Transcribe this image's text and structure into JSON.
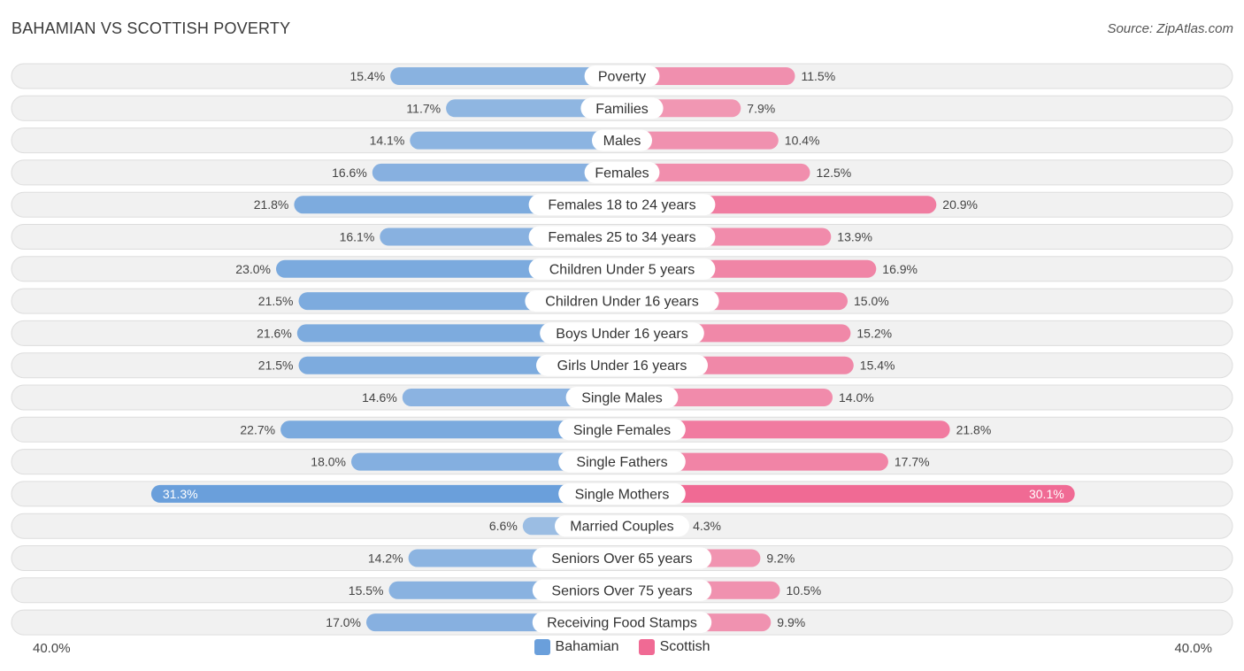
{
  "header": {
    "title": "BAHAMIAN VS SCOTTISH POVERTY",
    "source": "Source: ZipAtlas.com"
  },
  "chart_data": {
    "type": "bar",
    "orientation": "horizontal-diverging",
    "title": "BAHAMIAN VS SCOTTISH POVERTY",
    "axis_max": 40.0,
    "axis_left_label": "40.0%",
    "axis_right_label": "40.0%",
    "categories": [
      "Poverty",
      "Families",
      "Males",
      "Females",
      "Females 18 to 24 years",
      "Females 25 to 34 years",
      "Children Under 5 years",
      "Children Under 16 years",
      "Boys Under 16 years",
      "Girls Under 16 years",
      "Single Males",
      "Single Females",
      "Single Fathers",
      "Single Mothers",
      "Married Couples",
      "Seniors Over 65 years",
      "Seniors Over 75 years",
      "Receiving Food Stamps"
    ],
    "series": [
      {
        "name": "Bahamian",
        "color": "#6a9fdb",
        "values": [
          15.4,
          11.7,
          14.1,
          16.6,
          21.8,
          16.1,
          23.0,
          21.5,
          21.6,
          21.5,
          14.6,
          22.7,
          18.0,
          31.3,
          6.6,
          14.2,
          15.5,
          17.0
        ],
        "labels": [
          "15.4%",
          "11.7%",
          "14.1%",
          "16.6%",
          "21.8%",
          "16.1%",
          "23.0%",
          "21.5%",
          "21.6%",
          "21.5%",
          "14.6%",
          "22.7%",
          "18.0%",
          "31.3%",
          "6.6%",
          "14.2%",
          "15.5%",
          "17.0%"
        ]
      },
      {
        "name": "Scottish",
        "color": "#f06a94",
        "values": [
          11.5,
          7.9,
          10.4,
          12.5,
          20.9,
          13.9,
          16.9,
          15.0,
          15.2,
          15.4,
          14.0,
          21.8,
          17.7,
          30.1,
          4.3,
          9.2,
          10.5,
          9.9
        ],
        "labels": [
          "11.5%",
          "7.9%",
          "10.4%",
          "12.5%",
          "20.9%",
          "13.9%",
          "16.9%",
          "15.0%",
          "15.2%",
          "15.4%",
          "14.0%",
          "21.8%",
          "17.7%",
          "30.1%",
          "4.3%",
          "9.2%",
          "10.5%",
          "9.9%"
        ]
      }
    ],
    "legend": [
      "Bahamian",
      "Scottish"
    ],
    "legend_position": "bottom-center"
  }
}
